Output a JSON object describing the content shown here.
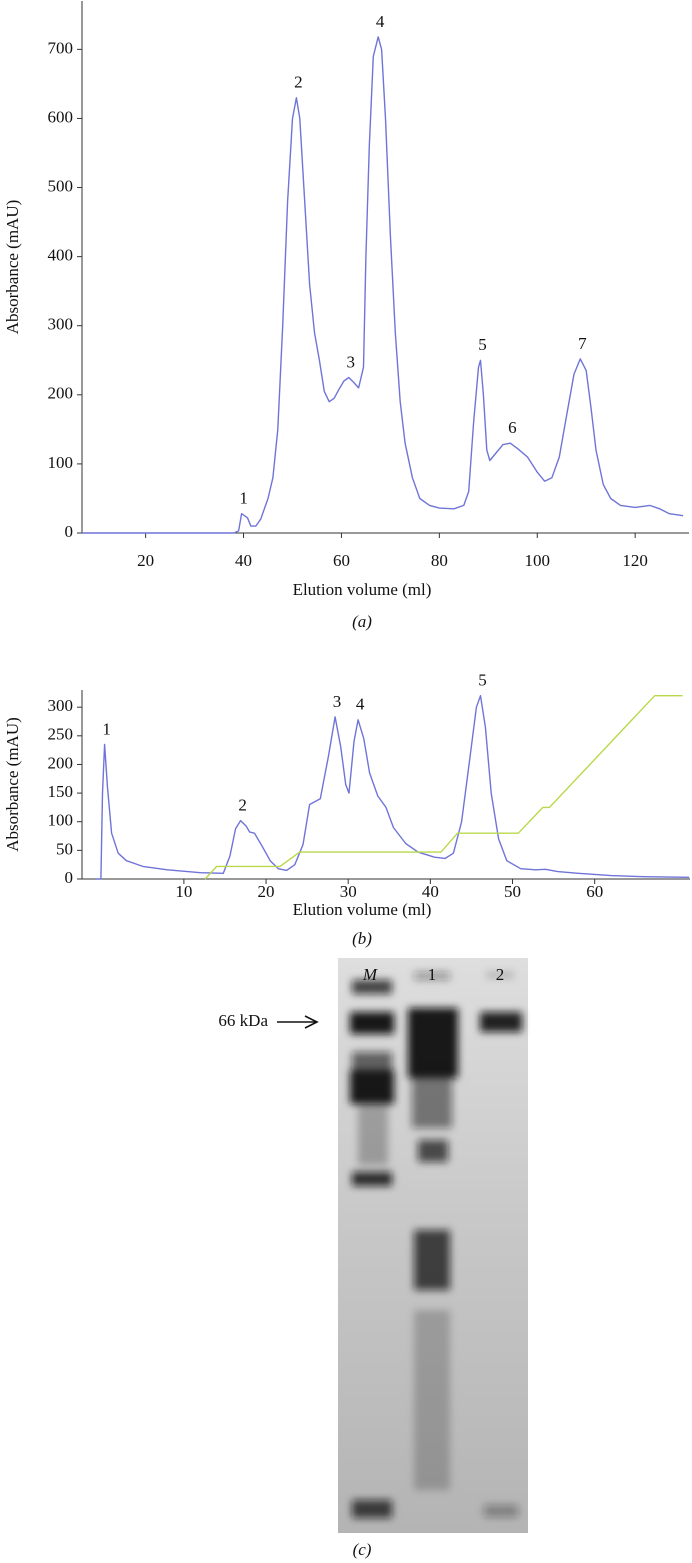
{
  "chart_data": [
    {
      "type": "line",
      "y_label": "Absorbance (mAU)",
      "x_label": "Elution volume (ml)",
      "caption": "(a)",
      "xlim": [
        7,
        131
      ],
      "xticks": [
        20,
        40,
        60,
        80,
        100,
        120
      ],
      "ylim": [
        0,
        770
      ],
      "yticks": [
        0,
        100,
        200,
        300,
        400,
        500,
        600,
        700
      ],
      "series": [
        {
          "color": "#6f74d8",
          "x": [
            7,
            38,
            39,
            39.6,
            40.8,
            41.5,
            42.5,
            43.5,
            45,
            46,
            47,
            48,
            49,
            50,
            50.8,
            51.5,
            52.5,
            53.5,
            54.5,
            55.5,
            56.5,
            57.5,
            58.5,
            59.5,
            60.5,
            61.5,
            62.5,
            63.5,
            64.5,
            65,
            65.7,
            66.5,
            67.5,
            68.2,
            69,
            70,
            71,
            72,
            73,
            74.5,
            76,
            78,
            80,
            83,
            85,
            86,
            87,
            88,
            88.4,
            89,
            89.7,
            90.3,
            91.5,
            93,
            94.5,
            96,
            98,
            100,
            101.5,
            103,
            104.5,
            106,
            107.5,
            108.8,
            110,
            111,
            112,
            113.5,
            115,
            117,
            120,
            123,
            125,
            127,
            129.8
          ],
          "values": [
            0,
            0,
            3,
            28,
            22,
            10,
            10,
            20,
            50,
            80,
            150,
            300,
            480,
            600,
            630,
            600,
            480,
            360,
            290,
            250,
            205,
            190,
            195,
            208,
            220,
            225,
            218,
            210,
            240,
            400,
            560,
            690,
            718,
            700,
            600,
            430,
            290,
            190,
            130,
            80,
            50,
            40,
            36,
            35,
            40,
            60,
            160,
            240,
            250,
            200,
            120,
            105,
            115,
            128,
            130,
            122,
            110,
            88,
            75,
            80,
            110,
            170,
            230,
            252,
            235,
            180,
            120,
            70,
            50,
            40,
            37,
            40,
            35,
            28,
            25
          ]
        }
      ],
      "annotations": [
        {
          "text": "1",
          "x": 39.6,
          "y": 28
        },
        {
          "text": "2",
          "x": 50.8,
          "y": 630
        },
        {
          "text": "3",
          "x": 61.5,
          "y": 225
        },
        {
          "text": "4",
          "x": 67.5,
          "y": 718
        },
        {
          "text": "5",
          "x": 88.4,
          "y": 250
        },
        {
          "text": "6",
          "x": 94.5,
          "y": 130
        },
        {
          "text": "7",
          "x": 108.8,
          "y": 252
        }
      ]
    },
    {
      "type": "line",
      "y_label": "Absorbance (mAU)",
      "x_label": "Elution volume (ml)",
      "caption": "(b)",
      "xlim": [
        -2.4,
        71.6
      ],
      "xticks": [
        10,
        20,
        30,
        40,
        50,
        60
      ],
      "ylim": [
        0,
        330
      ],
      "yticks": [
        0,
        50,
        100,
        150,
        200,
        250,
        300
      ],
      "series": [
        {
          "color": "#6f74d8",
          "x": [
            -0.7,
            -0.1,
            0.1,
            0.35,
            0.7,
            1.2,
            2,
            3,
            5,
            8,
            12,
            14.8,
            15.6,
            16.3,
            16.9,
            17.6,
            18,
            18.6,
            19.5,
            20.5,
            21.5,
            22.5,
            23.5,
            24.5,
            25.3,
            26.6,
            27.6,
            28.4,
            29.1,
            29.7,
            30.1,
            30.7,
            31.2,
            31.9,
            32.6,
            33.6,
            34.6,
            35.5,
            37,
            38.5,
            40.5,
            41.8,
            42.8,
            43.8,
            44.8,
            45.6,
            46.1,
            46.7,
            47.4,
            48.3,
            49.3,
            51,
            52.8,
            54,
            55.5,
            58,
            62,
            66,
            71.5
          ],
          "values": [
            0,
            0,
            150,
            235,
            160,
            80,
            45,
            32,
            22,
            16,
            11,
            10,
            40,
            88,
            102,
            92,
            82,
            80,
            58,
            32,
            18,
            15,
            25,
            60,
            130,
            140,
            215,
            283,
            230,
            165,
            150,
            240,
            278,
            245,
            185,
            145,
            125,
            90,
            62,
            47,
            38,
            36,
            45,
            100,
            210,
            300,
            320,
            265,
            150,
            70,
            32,
            18,
            16,
            17,
            13,
            10,
            6,
            4,
            3
          ]
        },
        {
          "color": "#b8d94a",
          "x": [
            12.6,
            14,
            21.7,
            24.1,
            41.3,
            43.3,
            50.7,
            53.7,
            54.5,
            67.3,
            70.7
          ],
          "values": [
            0,
            22,
            22,
            47,
            47,
            80,
            80,
            125,
            125,
            320,
            320
          ]
        }
      ],
      "annotations": [
        {
          "text": "1",
          "x": 0.35,
          "y": 235
        },
        {
          "text": "2",
          "x": 16.9,
          "y": 102
        },
        {
          "text": "3",
          "x": 28.4,
          "y": 283
        },
        {
          "text": "4",
          "x": 31.2,
          "y": 278
        },
        {
          "text": "5",
          "x": 46.1,
          "y": 320
        }
      ]
    }
  ],
  "gel": {
    "lane_labels": [
      "M",
      "1",
      "2"
    ],
    "marker_label": "66 kDa",
    "caption": "(c)"
  }
}
